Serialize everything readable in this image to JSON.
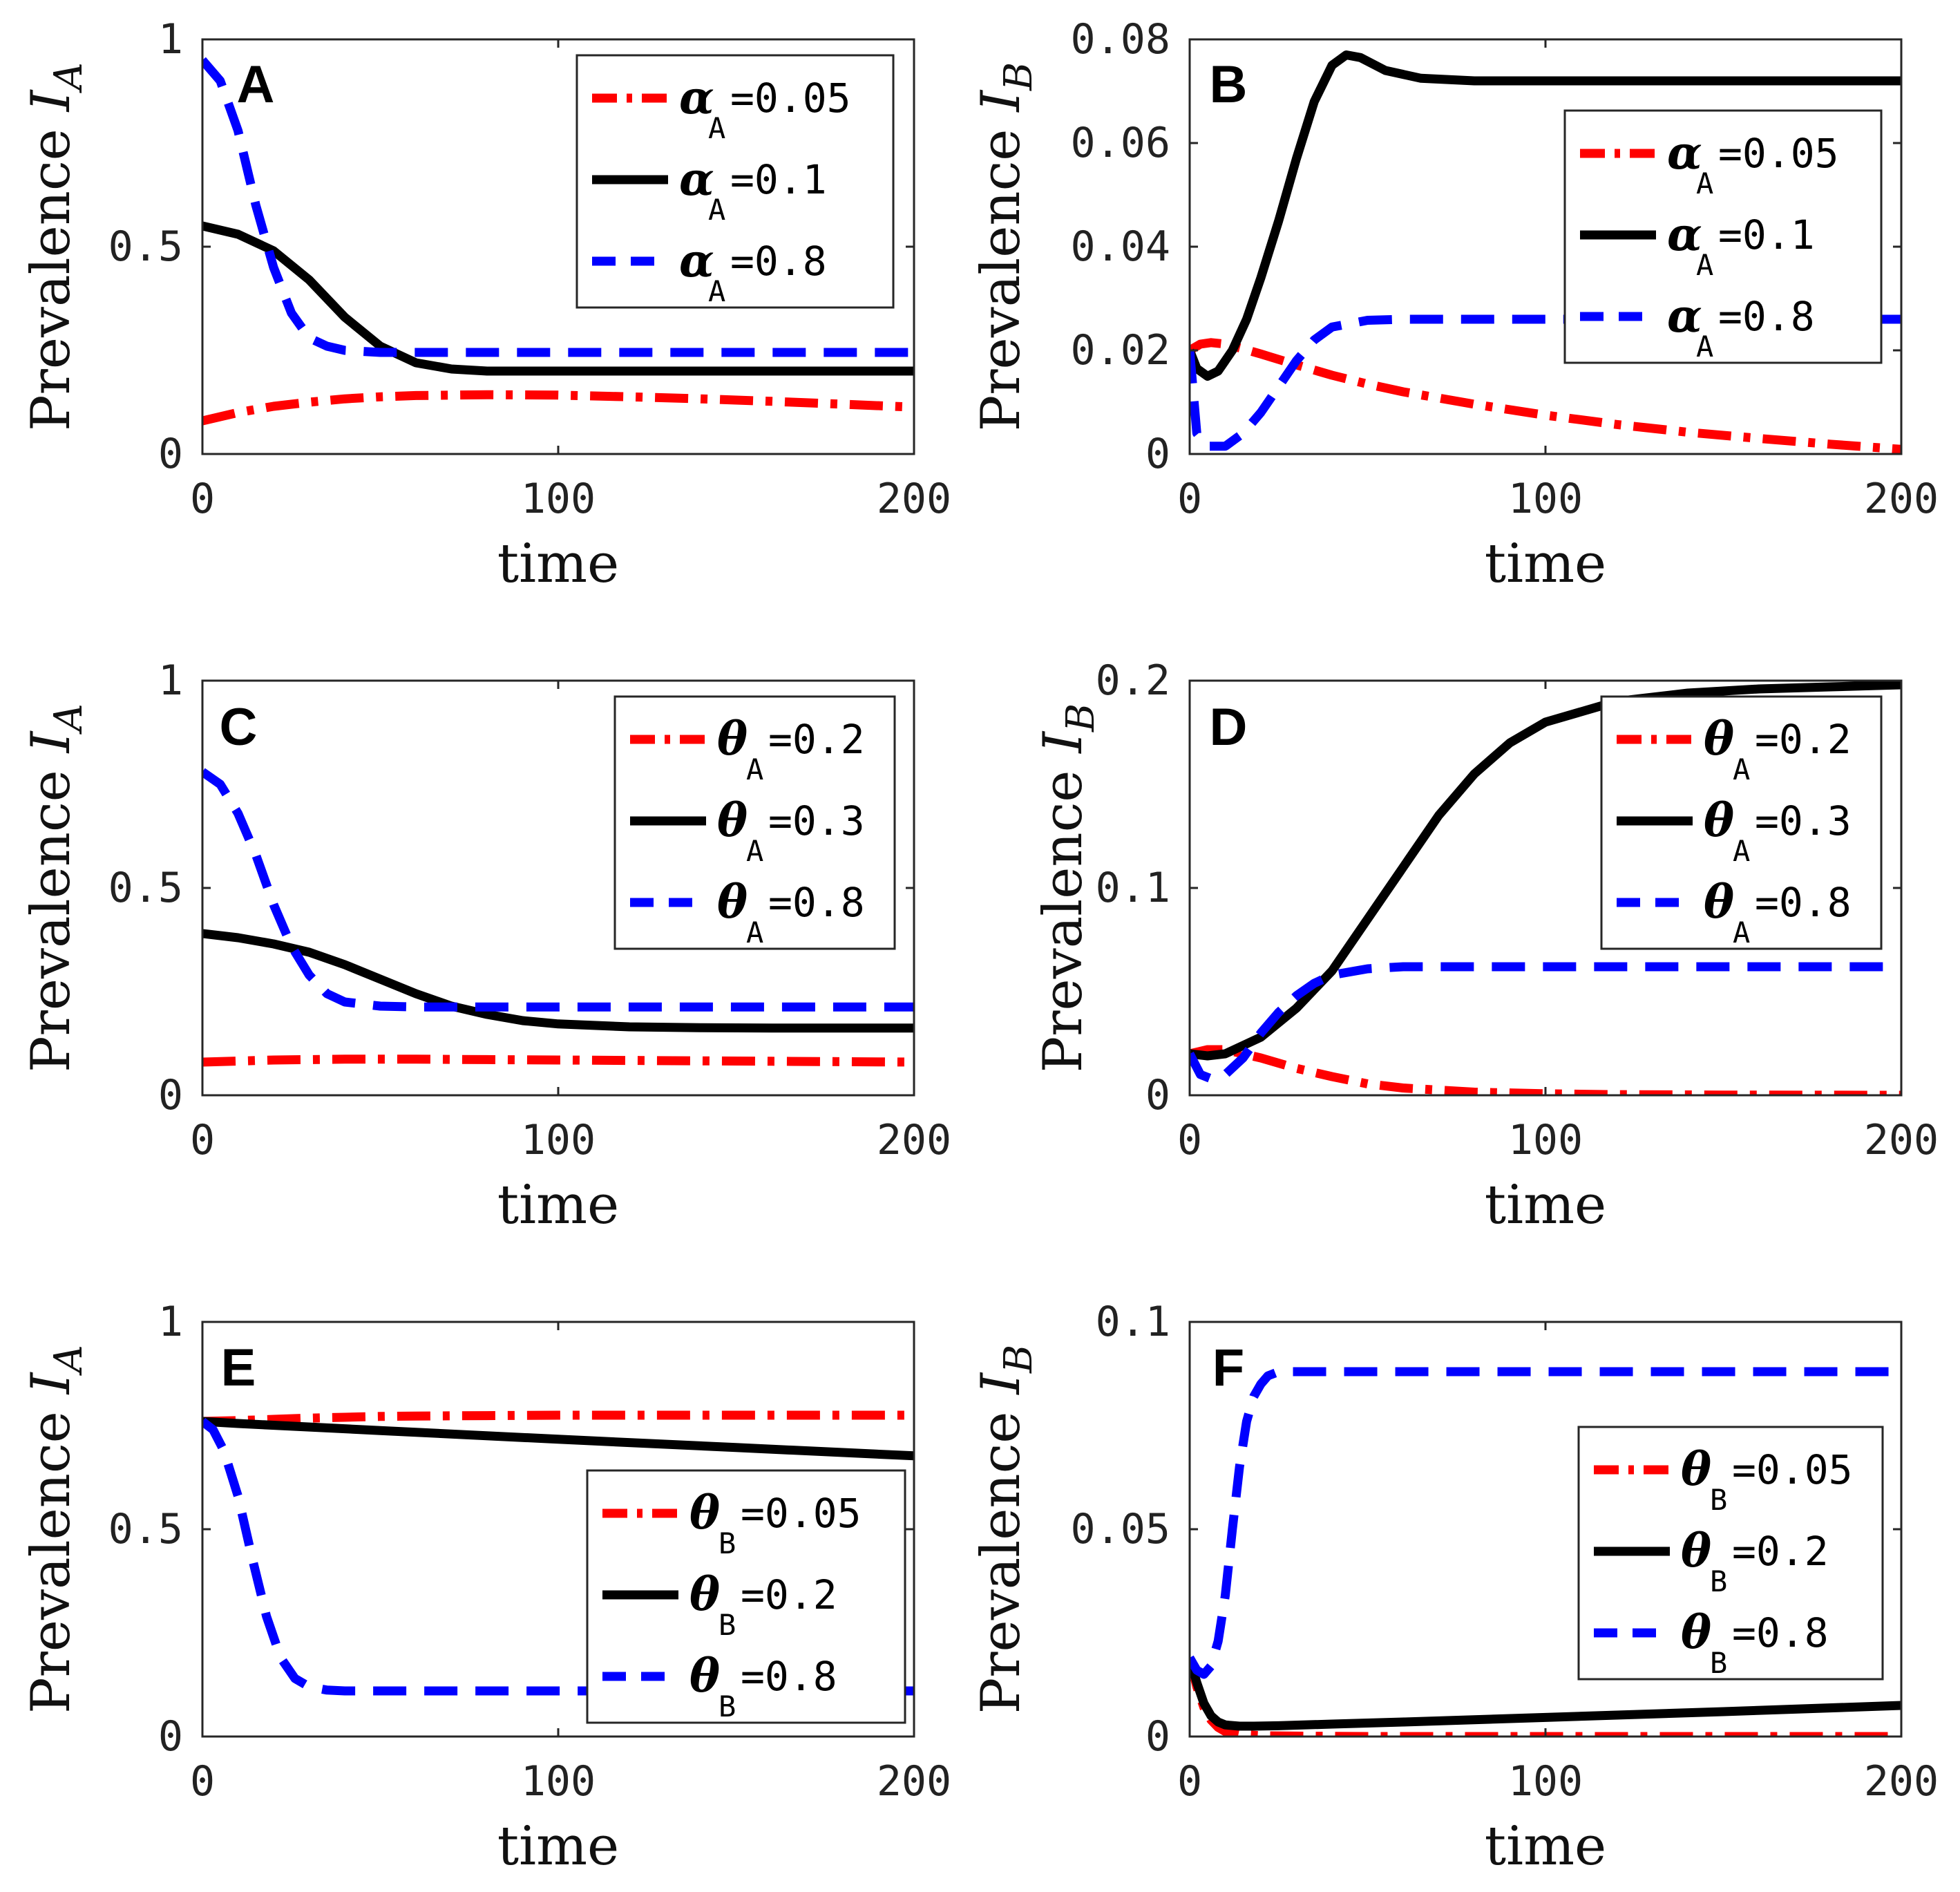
{
  "colors": {
    "red": "#ff0000",
    "black": "#000000",
    "blue": "#0000ff"
  },
  "chart_data": [
    {
      "type": "line",
      "panel": "A",
      "ylabel_main": "Prevalence ",
      "ylabel_var": "I",
      "ylabel_sub": "A",
      "xlabel": "time",
      "xlim": [
        0,
        200
      ],
      "ylim": [
        0,
        1
      ],
      "xticks": [
        0,
        100,
        200
      ],
      "xtick_labels": [
        "0",
        "100",
        "200"
      ],
      "yticks": [
        0,
        0.5,
        1
      ],
      "ytick_labels": [
        "0",
        "0.5",
        "1"
      ],
      "legend_position": "top-right",
      "legend_symbol": "α",
      "legend_sub": "A",
      "series": [
        {
          "name": "αA=0.05",
          "value_label": "=0.05",
          "style": "dashdot",
          "color": "#ff0000",
          "x": [
            0,
            10,
            20,
            30,
            40,
            50,
            60,
            80,
            100,
            120,
            140,
            160,
            180,
            200
          ],
          "y": [
            0.08,
            0.1,
            0.115,
            0.125,
            0.133,
            0.138,
            0.141,
            0.143,
            0.142,
            0.138,
            0.133,
            0.127,
            0.12,
            0.113
          ]
        },
        {
          "name": "αA=0.1",
          "value_label": "=0.1",
          "style": "solid",
          "color": "#000000",
          "x": [
            0,
            10,
            20,
            30,
            40,
            50,
            60,
            70,
            80,
            100,
            120,
            140,
            160,
            180,
            200
          ],
          "y": [
            0.55,
            0.53,
            0.49,
            0.42,
            0.33,
            0.26,
            0.22,
            0.205,
            0.2,
            0.2,
            0.2,
            0.2,
            0.2,
            0.2,
            0.2
          ]
        },
        {
          "name": "αA=0.8",
          "value_label": "=0.8",
          "style": "dashed",
          "color": "#0000ff",
          "x": [
            0,
            5,
            10,
            15,
            20,
            25,
            30,
            35,
            40,
            50,
            60,
            80,
            100,
            150,
            200
          ],
          "y": [
            0.95,
            0.9,
            0.78,
            0.6,
            0.45,
            0.34,
            0.28,
            0.26,
            0.25,
            0.245,
            0.245,
            0.245,
            0.245,
            0.245,
            0.245
          ]
        }
      ]
    },
    {
      "type": "line",
      "panel": "B",
      "ylabel_main": "Prevalence ",
      "ylabel_var": "I",
      "ylabel_sub": "B",
      "xlabel": "time",
      "xlim": [
        0,
        200
      ],
      "ylim": [
        0,
        0.08
      ],
      "xticks": [
        0,
        100,
        200
      ],
      "xtick_labels": [
        "0",
        "100",
        "200"
      ],
      "yticks": [
        0,
        0.02,
        0.04,
        0.06,
        0.08
      ],
      "ytick_labels": [
        "0",
        "0.02",
        "0.04",
        "0.06",
        "0.08"
      ],
      "legend_position": "upper-right",
      "legend_symbol": "α",
      "legend_sub": "A",
      "series": [
        {
          "name": "αA=0.05",
          "value_label": "=0.05",
          "style": "dashdot",
          "color": "#ff0000",
          "x": [
            0,
            3,
            6,
            10,
            15,
            20,
            30,
            40,
            50,
            60,
            80,
            100,
            120,
            140,
            160,
            180,
            200
          ],
          "y": [
            0.02,
            0.0212,
            0.0215,
            0.0212,
            0.0203,
            0.0193,
            0.0172,
            0.0152,
            0.0135,
            0.012,
            0.0096,
            0.0075,
            0.0057,
            0.0042,
            0.003,
            0.0019,
            0.0009
          ]
        },
        {
          "name": "αA=0.1",
          "value_label": "=0.1",
          "style": "solid",
          "color": "#000000",
          "x": [
            0,
            2,
            5,
            8,
            12,
            16,
            20,
            25,
            30,
            35,
            40,
            44,
            48,
            55,
            65,
            80,
            100,
            150,
            200
          ],
          "y": [
            0.02,
            0.0165,
            0.015,
            0.016,
            0.02,
            0.026,
            0.034,
            0.045,
            0.057,
            0.068,
            0.075,
            0.077,
            0.0765,
            0.074,
            0.0725,
            0.072,
            0.072,
            0.072,
            0.072
          ]
        },
        {
          "name": "αA=0.8",
          "value_label": "=0.8",
          "style": "dashed",
          "color": "#0000ff",
          "x": [
            0,
            2,
            5,
            10,
            15,
            20,
            25,
            30,
            35,
            40,
            50,
            60,
            80,
            100,
            150,
            200
          ],
          "y": [
            0.02,
            0.004,
            0.0015,
            0.0015,
            0.004,
            0.008,
            0.013,
            0.018,
            0.022,
            0.0245,
            0.0258,
            0.026,
            0.026,
            0.026,
            0.026,
            0.026
          ]
        }
      ]
    },
    {
      "type": "line",
      "panel": "C",
      "ylabel_main": "Prevalence ",
      "ylabel_var": "I",
      "ylabel_sub": "A",
      "xlabel": "time",
      "xlim": [
        0,
        200
      ],
      "ylim": [
        0,
        1
      ],
      "xticks": [
        0,
        100,
        200
      ],
      "xtick_labels": [
        "0",
        "100",
        "200"
      ],
      "yticks": [
        0,
        0.5,
        1
      ],
      "ytick_labels": [
        "0",
        "0.5",
        "1"
      ],
      "legend_position": "top-right",
      "legend_symbol": "θ",
      "legend_sub": "A",
      "series": [
        {
          "name": "θA=0.2",
          "value_label": "=0.2",
          "style": "dashdot",
          "color": "#ff0000",
          "x": [
            0,
            20,
            40,
            60,
            80,
            100,
            120,
            140,
            160,
            180,
            200
          ],
          "y": [
            0.08,
            0.085,
            0.087,
            0.087,
            0.086,
            0.085,
            0.084,
            0.083,
            0.082,
            0.081,
            0.08
          ]
        },
        {
          "name": "θA=0.3",
          "value_label": "=0.3",
          "style": "solid",
          "color": "#000000",
          "x": [
            0,
            10,
            20,
            30,
            40,
            50,
            60,
            70,
            80,
            90,
            100,
            120,
            140,
            160,
            180,
            200
          ],
          "y": [
            0.39,
            0.38,
            0.365,
            0.345,
            0.315,
            0.28,
            0.245,
            0.215,
            0.195,
            0.18,
            0.172,
            0.165,
            0.163,
            0.162,
            0.162,
            0.162
          ]
        },
        {
          "name": "θA=0.8",
          "value_label": "=0.8",
          "style": "dashed",
          "color": "#0000ff",
          "x": [
            0,
            5,
            10,
            15,
            20,
            25,
            30,
            35,
            40,
            50,
            60,
            80,
            100,
            150,
            200
          ],
          "y": [
            0.78,
            0.75,
            0.68,
            0.58,
            0.46,
            0.36,
            0.29,
            0.245,
            0.225,
            0.215,
            0.213,
            0.213,
            0.213,
            0.213,
            0.213
          ]
        }
      ]
    },
    {
      "type": "line",
      "panel": "D",
      "ylabel_main": "Prevalence ",
      "ylabel_var": "I",
      "ylabel_sub": "B",
      "xlabel": "time",
      "xlim": [
        0,
        200
      ],
      "ylim": [
        0,
        0.2
      ],
      "xticks": [
        0,
        100,
        200
      ],
      "xtick_labels": [
        "0",
        "100",
        "200"
      ],
      "yticks": [
        0,
        0.1,
        0.2
      ],
      "ytick_labels": [
        "0",
        "0.1",
        "0.2"
      ],
      "legend_position": "top-right",
      "legend_symbol": "θ",
      "legend_sub": "A",
      "series": [
        {
          "name": "θA=0.2",
          "value_label": "=0.2",
          "style": "dashdot",
          "color": "#ff0000",
          "x": [
            0,
            5,
            10,
            20,
            30,
            40,
            50,
            60,
            80,
            100,
            120,
            150,
            200
          ],
          "y": [
            0.02,
            0.022,
            0.022,
            0.018,
            0.013,
            0.009,
            0.0055,
            0.0035,
            0.0015,
            0.0007,
            0.0003,
            0.0001,
            0.0
          ]
        },
        {
          "name": "θA=0.3",
          "value_label": "=0.3",
          "style": "solid",
          "color": "#000000",
          "x": [
            0,
            5,
            10,
            20,
            30,
            40,
            50,
            60,
            70,
            80,
            90,
            100,
            120,
            140,
            160,
            180,
            200
          ],
          "y": [
            0.02,
            0.019,
            0.02,
            0.028,
            0.042,
            0.06,
            0.085,
            0.11,
            0.135,
            0.155,
            0.17,
            0.18,
            0.19,
            0.194,
            0.196,
            0.197,
            0.198
          ]
        },
        {
          "name": "θA=0.8",
          "value_label": "=0.8",
          "style": "dashed",
          "color": "#0000ff",
          "x": [
            0,
            3,
            6,
            10,
            15,
            20,
            25,
            30,
            35,
            40,
            50,
            60,
            80,
            100,
            150,
            200
          ],
          "y": [
            0.02,
            0.01,
            0.008,
            0.01,
            0.018,
            0.03,
            0.04,
            0.048,
            0.054,
            0.058,
            0.061,
            0.062,
            0.062,
            0.062,
            0.062,
            0.062
          ]
        }
      ]
    },
    {
      "type": "line",
      "panel": "E",
      "ylabel_main": "Prevalence ",
      "ylabel_var": "I",
      "ylabel_sub": "A",
      "xlabel": "time",
      "xlim": [
        0,
        200
      ],
      "ylim": [
        0,
        1
      ],
      "xticks": [
        0,
        100,
        200
      ],
      "xtick_labels": [
        "0",
        "100",
        "200"
      ],
      "yticks": [
        0,
        0.5,
        1
      ],
      "ytick_labels": [
        "0",
        "0.5",
        "1"
      ],
      "legend_position": "bottom-right",
      "legend_symbol": "θ",
      "legend_sub": "B",
      "series": [
        {
          "name": "θB=0.05",
          "value_label": "=0.05",
          "style": "dashdot",
          "color": "#ff0000",
          "x": [
            0,
            10,
            20,
            30,
            40,
            50,
            60,
            80,
            100,
            150,
            200
          ],
          "y": [
            0.76,
            0.762,
            0.765,
            0.768,
            0.77,
            0.772,
            0.773,
            0.774,
            0.775,
            0.775,
            0.775
          ]
        },
        {
          "name": "θB=0.2",
          "value_label": "=0.2",
          "style": "solid",
          "color": "#000000",
          "x": [
            0,
            10,
            50,
            100,
            150,
            200
          ],
          "y": [
            0.76,
            0.755,
            0.738,
            0.717,
            0.697,
            0.677
          ]
        },
        {
          "name": "θB=0.8",
          "value_label": "=0.8",
          "style": "dashed",
          "color": "#0000ff",
          "x": [
            0,
            3,
            6,
            10,
            14,
            18,
            22,
            26,
            30,
            35,
            40,
            50,
            60,
            80,
            100,
            150,
            200
          ],
          "y": [
            0.76,
            0.74,
            0.69,
            0.58,
            0.43,
            0.29,
            0.19,
            0.14,
            0.12,
            0.112,
            0.11,
            0.11,
            0.11,
            0.11,
            0.11,
            0.11,
            0.11
          ]
        }
      ]
    },
    {
      "type": "line",
      "panel": "F",
      "ylabel_main": "Prevalence ",
      "ylabel_var": "I",
      "ylabel_sub": "B",
      "xlabel": "time",
      "xlim": [
        0,
        200
      ],
      "ylim": [
        0,
        0.1
      ],
      "xticks": [
        0,
        100,
        200
      ],
      "xtick_labels": [
        "0",
        "100",
        "200"
      ],
      "yticks": [
        0,
        0.05,
        0.1
      ],
      "ytick_labels": [
        "0",
        "0.05",
        "0.1"
      ],
      "legend_position": "right",
      "legend_symbol": "θ",
      "legend_sub": "B",
      "series": [
        {
          "name": "θB=0.05",
          "value_label": "=0.05",
          "style": "dashdot",
          "color": "#ff0000",
          "x": [
            0,
            2,
            4,
            6,
            8,
            10,
            14,
            20,
            30,
            50,
            100,
            150,
            200
          ],
          "y": [
            0.019,
            0.012,
            0.007,
            0.004,
            0.0022,
            0.0012,
            0.0005,
            0.0002,
            0.0001,
            0.0,
            0.0,
            0.0,
            0.0
          ]
        },
        {
          "name": "θB=0.2",
          "value_label": "=0.2",
          "style": "solid",
          "color": "#000000",
          "x": [
            0,
            2,
            4,
            6,
            8,
            10,
            14,
            18,
            25,
            40,
            60,
            100,
            150,
            200
          ],
          "y": [
            0.019,
            0.013,
            0.008,
            0.005,
            0.0035,
            0.0028,
            0.0025,
            0.0025,
            0.0026,
            0.003,
            0.0035,
            0.0046,
            0.006,
            0.0075
          ]
        },
        {
          "name": "θB=0.8",
          "value_label": "=0.8",
          "style": "dashed",
          "color": "#0000ff",
          "x": [
            0,
            2,
            4,
            6,
            8,
            10,
            12,
            14,
            16,
            18,
            20,
            22,
            25,
            30,
            40,
            60,
            100,
            150,
            200
          ],
          "y": [
            0.019,
            0.016,
            0.015,
            0.017,
            0.023,
            0.034,
            0.05,
            0.065,
            0.076,
            0.082,
            0.085,
            0.087,
            0.088,
            0.088,
            0.088,
            0.088,
            0.088,
            0.088,
            0.088
          ]
        }
      ]
    }
  ]
}
